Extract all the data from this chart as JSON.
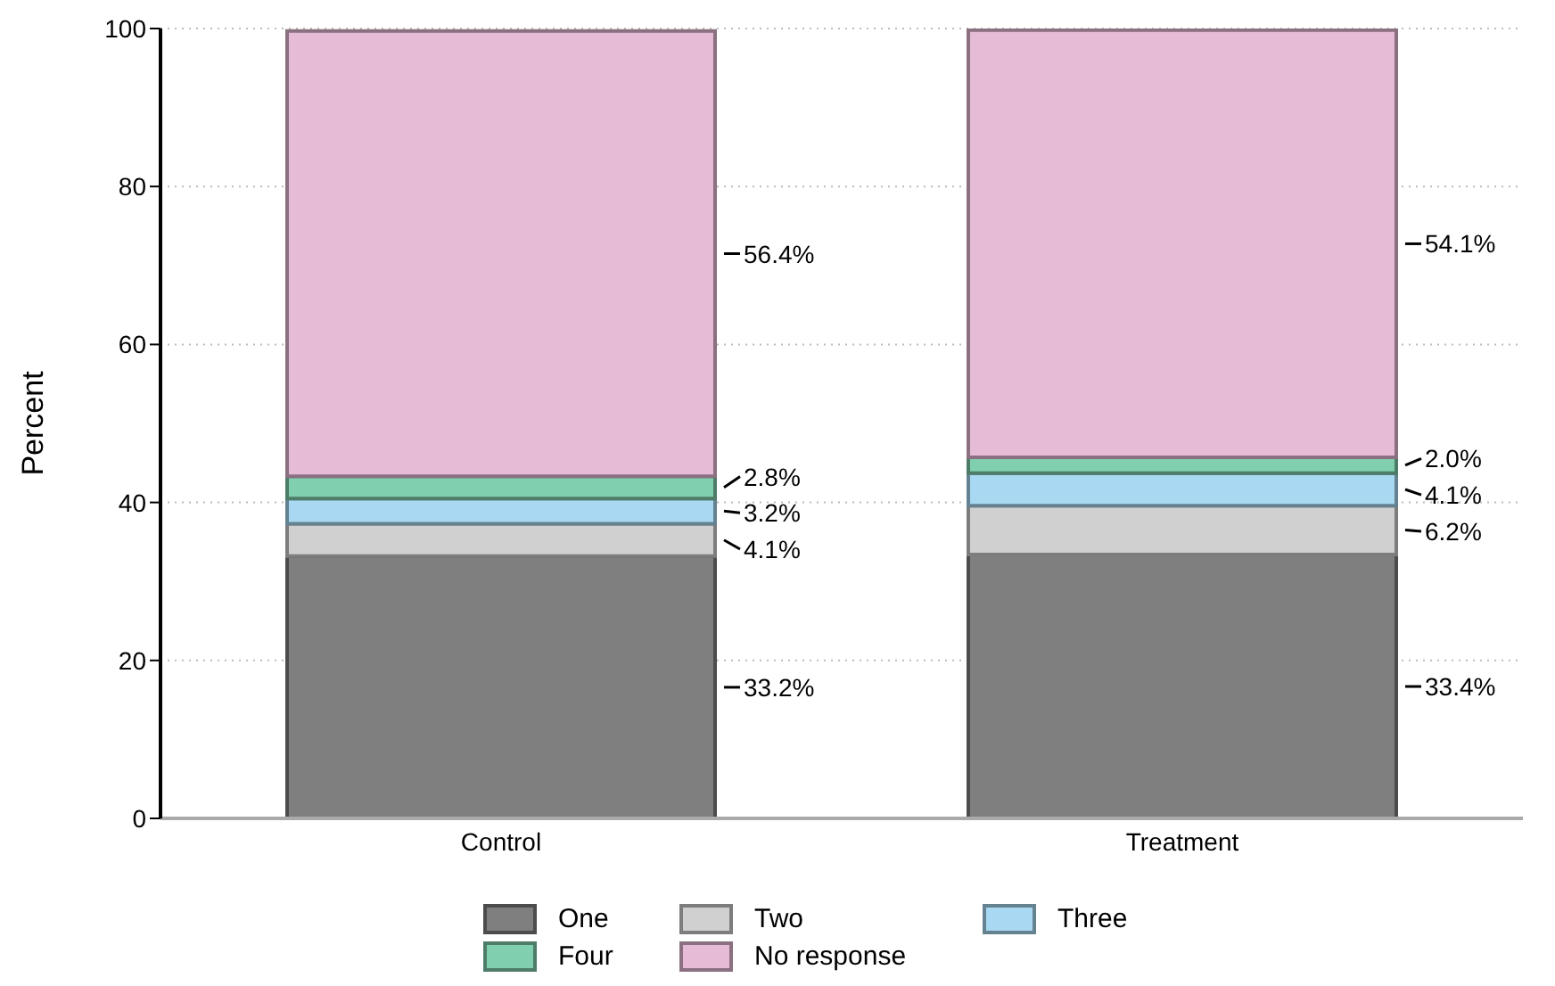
{
  "chart_data": {
    "type": "bar",
    "stacked": true,
    "ylabel": "Percent",
    "categories": [
      "Control",
      "Treatment"
    ],
    "series": [
      {
        "name": "One",
        "color": "#7f7f7f",
        "values": [
          33.2,
          33.4
        ],
        "value_labels": [
          "33.2%",
          "33.4%"
        ]
      },
      {
        "name": "Two",
        "color": "#d0d0d0",
        "values": [
          4.1,
          6.2
        ],
        "value_labels": [
          "4.1%",
          "6.2%"
        ]
      },
      {
        "name": "Three",
        "color": "#a8d8f2",
        "values": [
          3.2,
          4.1
        ],
        "value_labels": [
          "3.2%",
          "4.1%"
        ]
      },
      {
        "name": "Four",
        "color": "#80cfae",
        "values": [
          2.8,
          2.0
        ],
        "value_labels": [
          "2.8%",
          "2.0%"
        ]
      },
      {
        "name": "No response",
        "color": "#e6bbd5",
        "values": [
          56.4,
          54.1
        ],
        "value_labels": [
          "56.4%",
          "54.1%"
        ]
      }
    ],
    "ylim": [
      0,
      100
    ],
    "yticks": [
      0,
      20,
      40,
      60,
      80,
      100
    ],
    "grid": "y",
    "legend": "bottom"
  }
}
